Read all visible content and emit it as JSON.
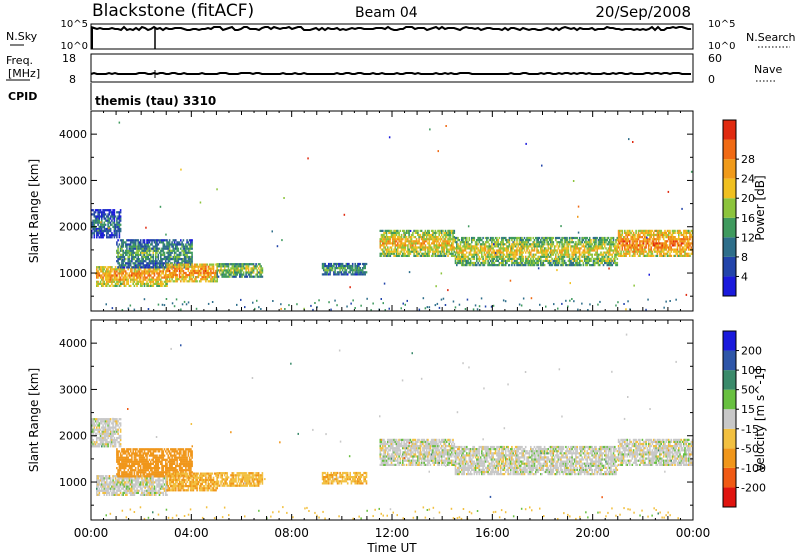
{
  "header": {
    "station": "Blackstone (fitACF)",
    "beam": "Beam 04",
    "date": "20/Sep/2008"
  },
  "top_panels": {
    "nsky_label": "N.Sky",
    "nsky_ticks": [
      "10^5",
      "10^0"
    ],
    "nsearch_label": "N.Search",
    "nsearch_ticks": [
      "10^5",
      "10^0"
    ],
    "freq_label_1": "Freq.",
    "freq_label_2": "[MHz]",
    "freq_ticks": [
      "18",
      "8"
    ],
    "nave_label": "Nave",
    "nave_ticks": [
      "60",
      "0"
    ],
    "cpid_label": "CPID",
    "cpid_text": "themis (tau) 3310"
  },
  "colors": {
    "power_scale": [
      "#1a1adc",
      "#2244aa",
      "#2e6e8a",
      "#3f9a5e",
      "#8cc43c",
      "#f0c020",
      "#f09a1a",
      "#f06a14",
      "#e02a10"
    ],
    "velocity_scale": [
      "#1a1adc",
      "#2e56a8",
      "#3a8a6a",
      "#68c040",
      "#c8c8c8",
      "#f2c040",
      "#f0961a",
      "#f05a14",
      "#e0140f"
    ],
    "velocity_ground": "#c4c4c4"
  },
  "chart_data": [
    {
      "type": "heatmap",
      "title": "",
      "quantity": "Power",
      "ylabel": "Slant Range [km]",
      "ylim": [
        180,
        4500
      ],
      "yticks": [
        1000,
        2000,
        3000,
        4000
      ],
      "ytick_labels": [
        "1000",
        "2000",
        "3000",
        "4000"
      ],
      "xlim_hours": [
        0,
        24
      ],
      "colorbar": {
        "label": "Power [dB]",
        "ticks": [
          "4",
          "8",
          "12",
          "16",
          "20",
          "24",
          "28"
        ],
        "range": [
          0,
          32
        ]
      },
      "echo_regions": [
        {
          "t": [
            0.0,
            1.2
          ],
          "r": [
            1750,
            2350
          ],
          "value": 6
        },
        {
          "t": [
            0.2,
            3.0
          ],
          "r": [
            700,
            1150
          ],
          "value": 20
        },
        {
          "t": [
            1.0,
            4.0
          ],
          "r": [
            1100,
            1700
          ],
          "value": 10
        },
        {
          "t": [
            3.0,
            5.0
          ],
          "r": [
            800,
            1200
          ],
          "value": 22
        },
        {
          "t": [
            5.0,
            6.8
          ],
          "r": [
            900,
            1200
          ],
          "value": 14
        },
        {
          "t": [
            9.2,
            11.0
          ],
          "r": [
            950,
            1200
          ],
          "value": 10
        },
        {
          "t": [
            11.5,
            14.5
          ],
          "r": [
            1350,
            1900
          ],
          "value": 18
        },
        {
          "t": [
            14.5,
            21.0
          ],
          "r": [
            1150,
            1750
          ],
          "value": 16
        },
        {
          "t": [
            21.0,
            24.0
          ],
          "r": [
            1350,
            1900
          ],
          "value": 22
        }
      ]
    },
    {
      "type": "heatmap",
      "title": "",
      "quantity": "Velocity",
      "ylabel": "Slant Range [km]",
      "ylim": [
        180,
        4500
      ],
      "yticks": [
        1000,
        2000,
        3000,
        4000
      ],
      "ytick_labels": [
        "1000",
        "2000",
        "3000",
        "4000"
      ],
      "xlabel": "Time UT",
      "xticks": [
        "00:00",
        "04:00",
        "08:00",
        "12:00",
        "16:00",
        "20:00",
        "00:00"
      ],
      "xlim_hours": [
        0,
        24
      ],
      "colorbar": {
        "label": "Velocity [m s^-1]",
        "ticks": [
          "200",
          "100",
          "50",
          "15",
          "-15",
          "-50",
          "-100",
          "-200"
        ]
      },
      "echo_regions": [
        {
          "t": [
            0.0,
            1.2
          ],
          "r": [
            1750,
            2350
          ],
          "value": 0
        },
        {
          "t": [
            0.2,
            3.0
          ],
          "r": [
            700,
            1150
          ],
          "value": 0
        },
        {
          "t": [
            1.0,
            4.0
          ],
          "r": [
            1100,
            1700
          ],
          "value": -80
        },
        {
          "t": [
            3.0,
            5.0
          ],
          "r": [
            800,
            1200
          ],
          "value": -50
        },
        {
          "t": [
            5.0,
            6.8
          ],
          "r": [
            900,
            1200
          ],
          "value": -40
        },
        {
          "t": [
            9.2,
            11.0
          ],
          "r": [
            950,
            1200
          ],
          "value": -40
        },
        {
          "t": [
            11.5,
            14.5
          ],
          "r": [
            1350,
            1900
          ],
          "value": 0
        },
        {
          "t": [
            14.5,
            21.0
          ],
          "r": [
            1150,
            1750
          ],
          "value": 0
        },
        {
          "t": [
            21.0,
            24.0
          ],
          "r": [
            1350,
            1900
          ],
          "value": 0
        }
      ]
    }
  ]
}
